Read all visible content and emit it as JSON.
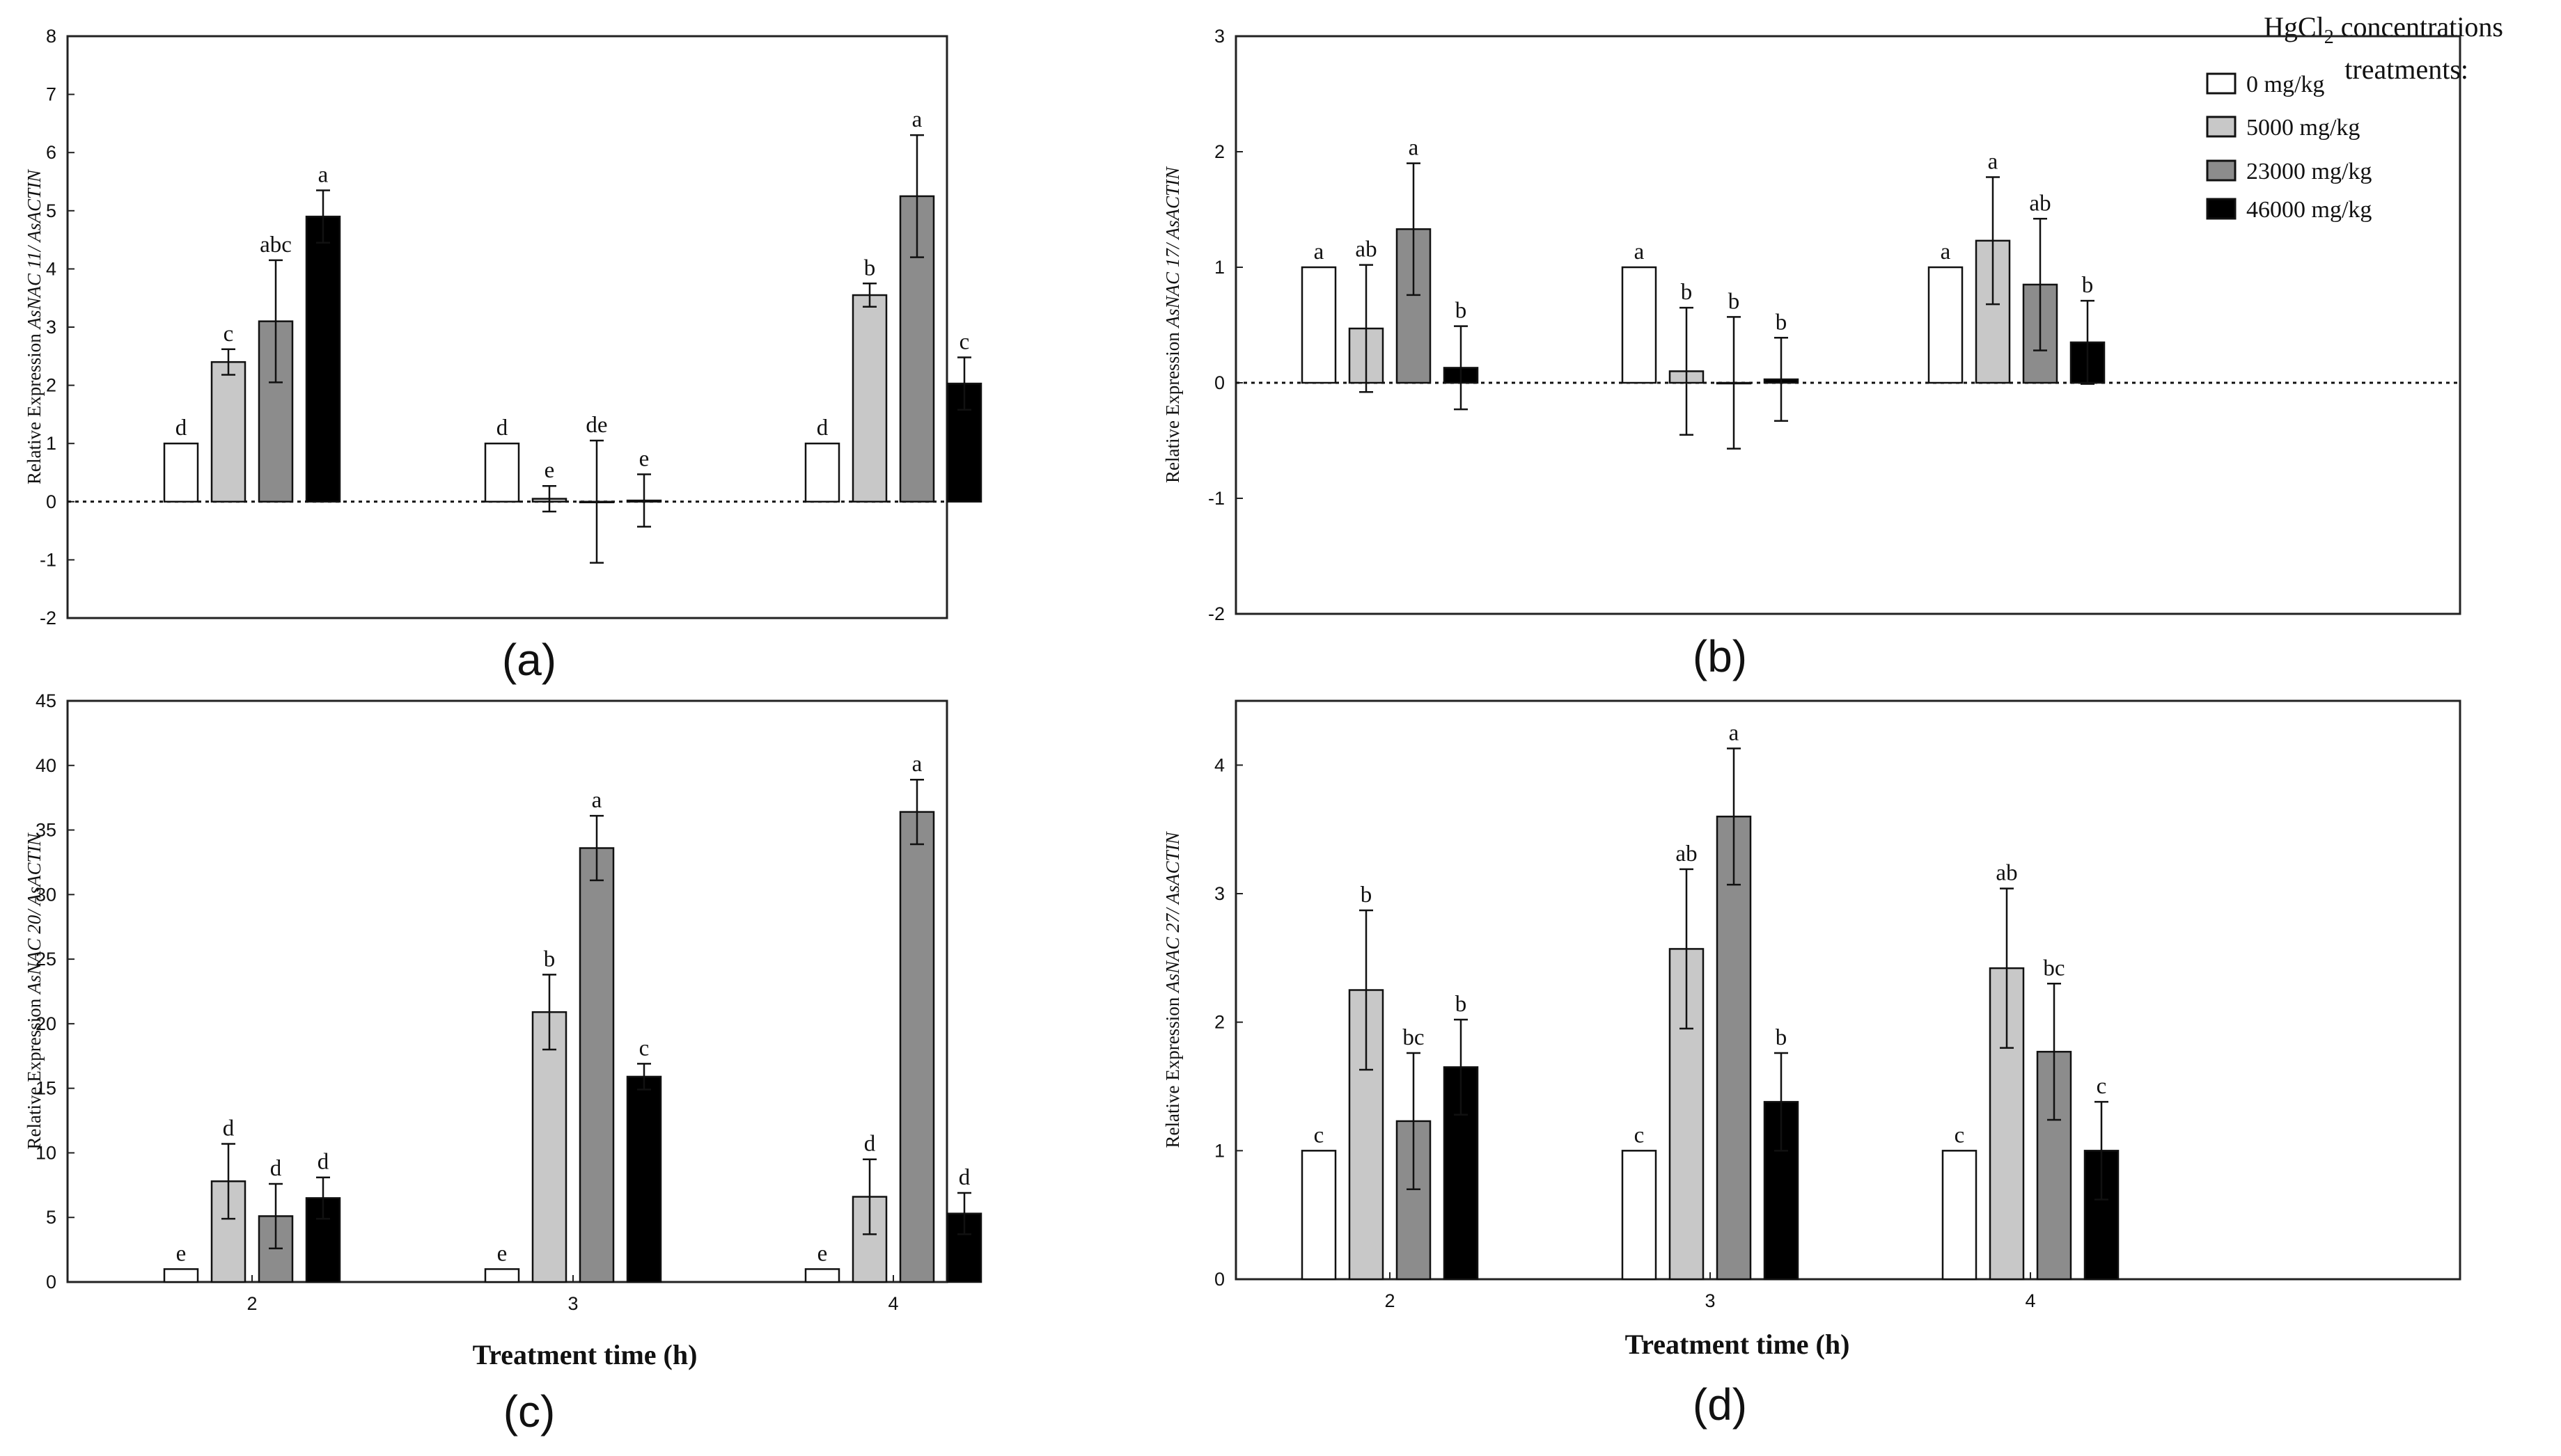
{
  "legend": {
    "title_line1": "HgCl",
    "title_sub": "2",
    "title_line1_rest": " concentrations",
    "title_line2": "treatments:",
    "items": [
      {
        "label": "0 mg/kg",
        "color": "#ffffff"
      },
      {
        "label": "5000 mg/kg",
        "color": "#c8c8c8"
      },
      {
        "label": "23000 mg/kg",
        "color": "#8c8c8c"
      },
      {
        "label": "46000 mg/kg",
        "color": "#000000"
      }
    ]
  },
  "x_axis_title": "Treatment time (h)",
  "chart_data": [
    {
      "panel": "(a)",
      "type": "bar",
      "ylabel_prefix": "Relative Expression ",
      "ylabel_gene": "AsNAC 11/ AsACTIN",
      "ylim": [
        -2,
        8
      ],
      "yticks": [
        -2,
        -1,
        0,
        1,
        2,
        3,
        4,
        5,
        6,
        7,
        8
      ],
      "baseline_dotted": true,
      "categories": [
        "2",
        "3",
        "4"
      ],
      "show_xticks": false,
      "series": [
        {
          "name": "0 mg/kg",
          "values": [
            1,
            1,
            1
          ],
          "errors": [
            0,
            0,
            0
          ],
          "letters": [
            "d",
            "d",
            "d"
          ]
        },
        {
          "name": "5000 mg/kg",
          "values": [
            2.4,
            0.05,
            3.55
          ],
          "errors": [
            0.22,
            0.22,
            0.2
          ],
          "letters": [
            "c",
            "e",
            "b"
          ]
        },
        {
          "name": "23000 mg/kg",
          "values": [
            3.1,
            0.0,
            5.25
          ],
          "errors": [
            1.05,
            1.05,
            1.05
          ],
          "letters": [
            "abc",
            "de",
            "a"
          ]
        },
        {
          "name": "46000 mg/kg",
          "values": [
            4.9,
            0.02,
            2.03
          ],
          "errors": [
            0.45,
            0.45,
            0.45
          ],
          "letters": [
            "a",
            "e",
            "c"
          ]
        }
      ]
    },
    {
      "panel": "(b)",
      "type": "bar",
      "ylabel_prefix": "Relative Expression ",
      "ylabel_gene": "AsNAC 17/ AsACTIN",
      "ylim": [
        -2,
        3
      ],
      "yticks": [
        -2,
        -1,
        0,
        1,
        2,
        3
      ],
      "baseline_dotted": true,
      "categories": [
        "2",
        "3",
        "4"
      ],
      "show_xticks": false,
      "series": [
        {
          "name": "0 mg/kg",
          "values": [
            1,
            1,
            1
          ],
          "errors": [
            0,
            0,
            0
          ],
          "letters": [
            "a",
            "a",
            "a"
          ]
        },
        {
          "name": "5000 mg/kg",
          "values": [
            0.47,
            0.1,
            1.23
          ],
          "errors": [
            0.55,
            0.55,
            0.55
          ],
          "letters": [
            "ab",
            "b",
            "a"
          ]
        },
        {
          "name": "23000 mg/kg",
          "values": [
            1.33,
            0.0,
            0.85
          ],
          "errors": [
            0.57,
            0.57,
            0.57
          ],
          "letters": [
            "a",
            "b",
            "ab"
          ]
        },
        {
          "name": "46000 mg/kg",
          "values": [
            0.13,
            0.03,
            0.35
          ],
          "errors": [
            0.36,
            0.36,
            0.36
          ],
          "letters": [
            "b",
            "b",
            "b"
          ]
        }
      ]
    },
    {
      "panel": "(c)",
      "type": "bar",
      "ylabel_prefix": "Relative Expression ",
      "ylabel_gene": "AsNAC 20/ AsACTIN",
      "ylim": [
        0,
        45
      ],
      "yticks": [
        0,
        5,
        10,
        15,
        20,
        25,
        30,
        35,
        40,
        45
      ],
      "baseline_dotted": false,
      "categories": [
        "2",
        "3",
        "4"
      ],
      "show_xticks": true,
      "series": [
        {
          "name": "0 mg/kg",
          "values": [
            1,
            1,
            1
          ],
          "errors": [
            0,
            0,
            0
          ],
          "letters": [
            "e",
            "e",
            "e"
          ]
        },
        {
          "name": "5000 mg/kg",
          "values": [
            7.8,
            20.9,
            6.6
          ],
          "errors": [
            2.9,
            2.9,
            2.9
          ],
          "letters": [
            "d",
            "b",
            "d"
          ]
        },
        {
          "name": "23000 mg/kg",
          "values": [
            5.1,
            33.6,
            36.4
          ],
          "errors": [
            2.5,
            2.5,
            2.5
          ],
          "letters": [
            "d",
            "a",
            "a"
          ]
        },
        {
          "name": "46000 mg/kg",
          "values": [
            6.5,
            15.9,
            5.3
          ],
          "errors": [
            1.6,
            1.0,
            1.6
          ],
          "letters": [
            "d",
            "c",
            "d"
          ]
        }
      ]
    },
    {
      "panel": "(d)",
      "type": "bar",
      "ylabel_prefix": "Relative Expression ",
      "ylabel_gene": "AsNAC 27/ AsACTIN",
      "ylim": [
        0,
        4.5
      ],
      "yticks": [
        0,
        1,
        2,
        3,
        4
      ],
      "baseline_dotted": false,
      "categories": [
        "2",
        "3",
        "4"
      ],
      "show_xticks": true,
      "series": [
        {
          "name": "0 mg/kg",
          "values": [
            1,
            1,
            1
          ],
          "errors": [
            0,
            0,
            0
          ],
          "letters": [
            "c",
            "c",
            "c"
          ]
        },
        {
          "name": "5000 mg/kg",
          "values": [
            2.25,
            2.57,
            2.42
          ],
          "errors": [
            0.62,
            0.62,
            0.62
          ],
          "letters": [
            "b",
            "ab",
            "ab"
          ]
        },
        {
          "name": "23000 mg/kg",
          "values": [
            1.23,
            3.6,
            1.77
          ],
          "errors": [
            0.53,
            0.53,
            0.53
          ],
          "letters": [
            "bc",
            "a",
            "bc"
          ]
        },
        {
          "name": "46000 mg/kg",
          "values": [
            1.65,
            1.38,
            1.0
          ],
          "errors": [
            0.37,
            0.38,
            0.38
          ],
          "letters": [
            "b",
            "b",
            "c"
          ]
        }
      ]
    }
  ]
}
